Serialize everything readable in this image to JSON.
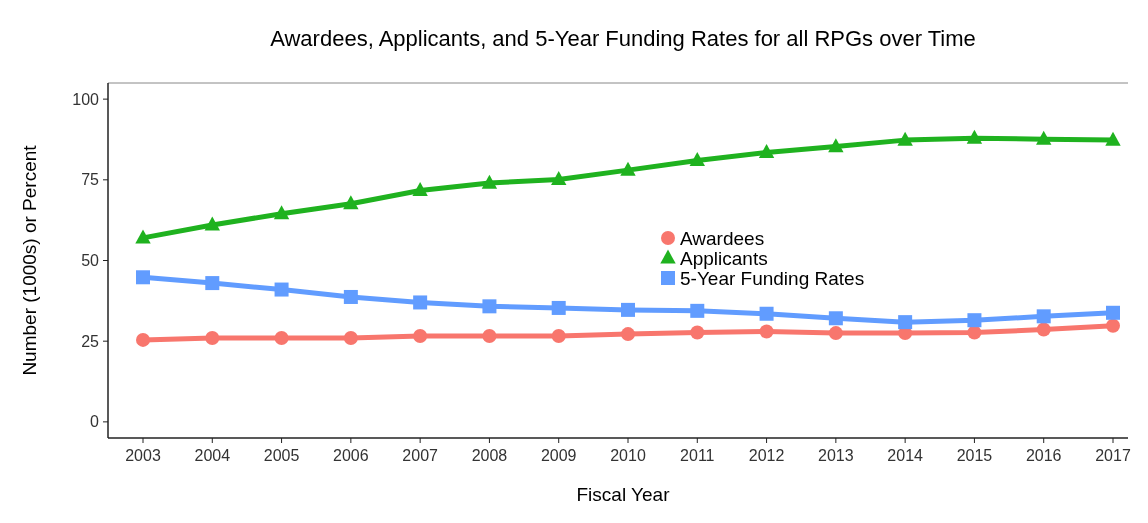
{
  "chart_data": {
    "type": "line",
    "title": "Awardees, Applicants, and 5-Year Funding Rates for all RPGs over Time",
    "xlabel": "Fiscal Year",
    "ylabel": "Number (1000s) or Percent",
    "categories": [
      "2003",
      "2004",
      "2005",
      "2006",
      "2007",
      "2008",
      "2009",
      "2010",
      "2011",
      "2012",
      "2013",
      "2014",
      "2015",
      "2016",
      "2017"
    ],
    "ylim": [
      -5,
      105
    ],
    "yticks": [
      0,
      25,
      50,
      75,
      100
    ],
    "grid": false,
    "legend": "center",
    "line_style": "solid",
    "series": [
      {
        "name": "Awardees",
        "color": "#f8766d",
        "marker": "circle",
        "values": [
          25.4,
          26,
          26,
          26,
          26.6,
          26.6,
          26.6,
          27.2,
          27.7,
          28,
          27.5,
          27.5,
          27.7,
          28.6,
          29.8
        ]
      },
      {
        "name": "Applicants",
        "color": "#1fb21f",
        "marker": "triangle",
        "values": [
          57,
          61,
          64.5,
          67.6,
          71.7,
          74,
          75.1,
          78,
          81,
          83.5,
          85.3,
          87.3,
          87.9,
          87.6,
          87.3
        ]
      },
      {
        "name": "5-Year Funding Rates",
        "color": "#619cff",
        "marker": "square",
        "values": [
          44.8,
          43,
          41,
          38.7,
          37,
          35.8,
          35.3,
          34.7,
          34.4,
          33.5,
          32.1,
          30.9,
          31.5,
          32.7,
          33.8
        ]
      }
    ]
  }
}
